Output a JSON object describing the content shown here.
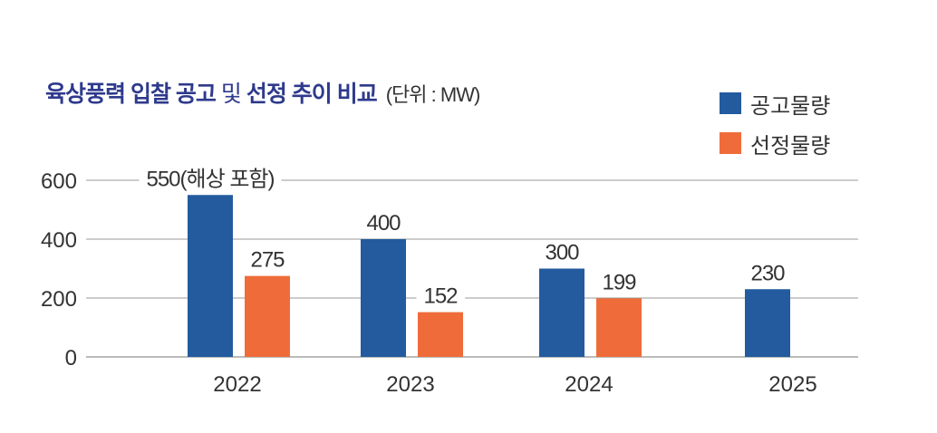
{
  "chart_data": {
    "type": "bar",
    "title": {
      "bold_1": "육상풍력 입찰 공고",
      "light": " 및 ",
      "bold_2": "선정 추이 비교",
      "unit": "(단위 : MW)"
    },
    "categories": [
      "2022",
      "2023",
      "2024",
      "2025"
    ],
    "series": [
      {
        "name": "공고물량",
        "color": "#235b9e",
        "values": [
          550,
          400,
          300,
          230
        ]
      },
      {
        "name": "선정물량",
        "color": "#ef6c3a",
        "values": [
          275,
          152,
          199,
          null
        ]
      }
    ],
    "data_labels": {
      "공고물량": [
        "550(해상 포함)",
        "400",
        "300",
        "230"
      ],
      "선정물량": [
        "275",
        "152",
        "199",
        ""
      ]
    },
    "yticks": [
      "0",
      "200",
      "400",
      "600"
    ],
    "ylim": [
      0,
      600
    ],
    "grid": true,
    "legend_placement": "top-right"
  }
}
